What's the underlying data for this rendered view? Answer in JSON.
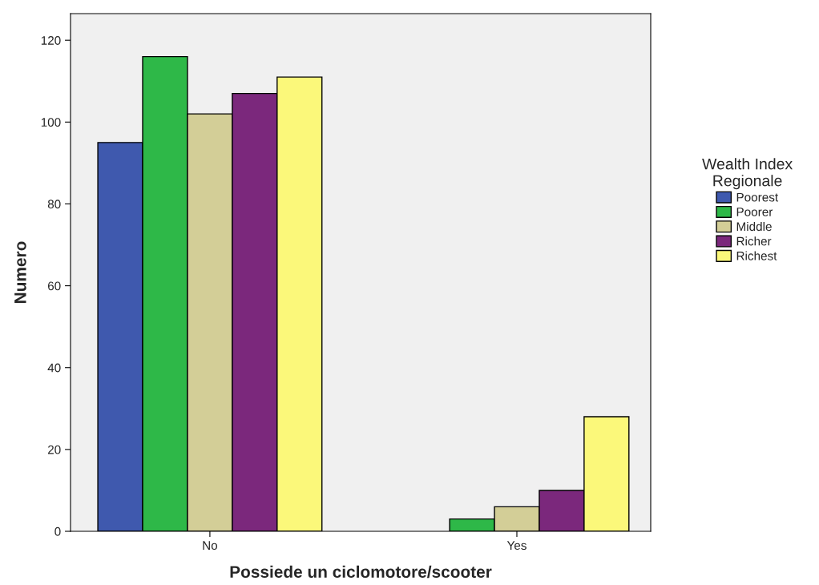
{
  "chart_data": {
    "type": "bar",
    "xlabel": "Possiede un ciclomotore/scooter",
    "ylabel": "Numero",
    "legend_title": "Wealth Index\nRegionale",
    "categories": [
      "No",
      "Yes"
    ],
    "series": [
      {
        "name": "Poorest",
        "color": "#3f59ae",
        "values": [
          95,
          null
        ]
      },
      {
        "name": "Poorer",
        "color": "#2eb848",
        "values": [
          116,
          3
        ]
      },
      {
        "name": "Middle",
        "color": "#d3ce97",
        "values": [
          102,
          6
        ]
      },
      {
        "name": "Richer",
        "color": "#7b287c",
        "values": [
          107,
          10
        ]
      },
      {
        "name": "Richest",
        "color": "#fbf87a",
        "values": [
          111,
          28
        ]
      }
    ],
    "ylim": [
      0,
      126.5
    ],
    "yticks": [
      0,
      20,
      40,
      60,
      80,
      100,
      120
    ],
    "grid": false,
    "legend": "right"
  }
}
